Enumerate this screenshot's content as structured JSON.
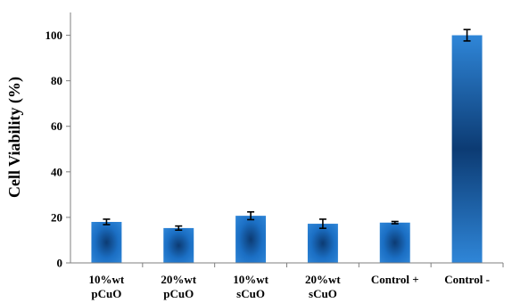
{
  "chart_data": {
    "type": "bar",
    "title": "",
    "xlabel": "",
    "ylabel": "Cell Viability (%)",
    "ylim": [
      0,
      110
    ],
    "yticks": [
      0,
      20,
      40,
      60,
      80,
      100
    ],
    "grid": false,
    "legend": "none",
    "categories": [
      [
        "10%wt",
        "pCuO"
      ],
      [
        "20%wt",
        "pCuO"
      ],
      [
        "10%wt",
        "sCuO"
      ],
      [
        "20%wt",
        "sCuO"
      ],
      [
        "Control +"
      ],
      [
        "Control -"
      ]
    ],
    "values": [
      18,
      15.3,
      20.7,
      17.2,
      17.7,
      100
    ],
    "errors": [
      1.2,
      0.9,
      1.7,
      2.0,
      0.5,
      2.5
    ],
    "colors": {
      "bar_edge": "#1b6fc4",
      "bar_center": "#0c3b73",
      "bar_highlight": "#2f86d8",
      "axis": "#7f7f7f",
      "error": "#000000"
    }
  }
}
